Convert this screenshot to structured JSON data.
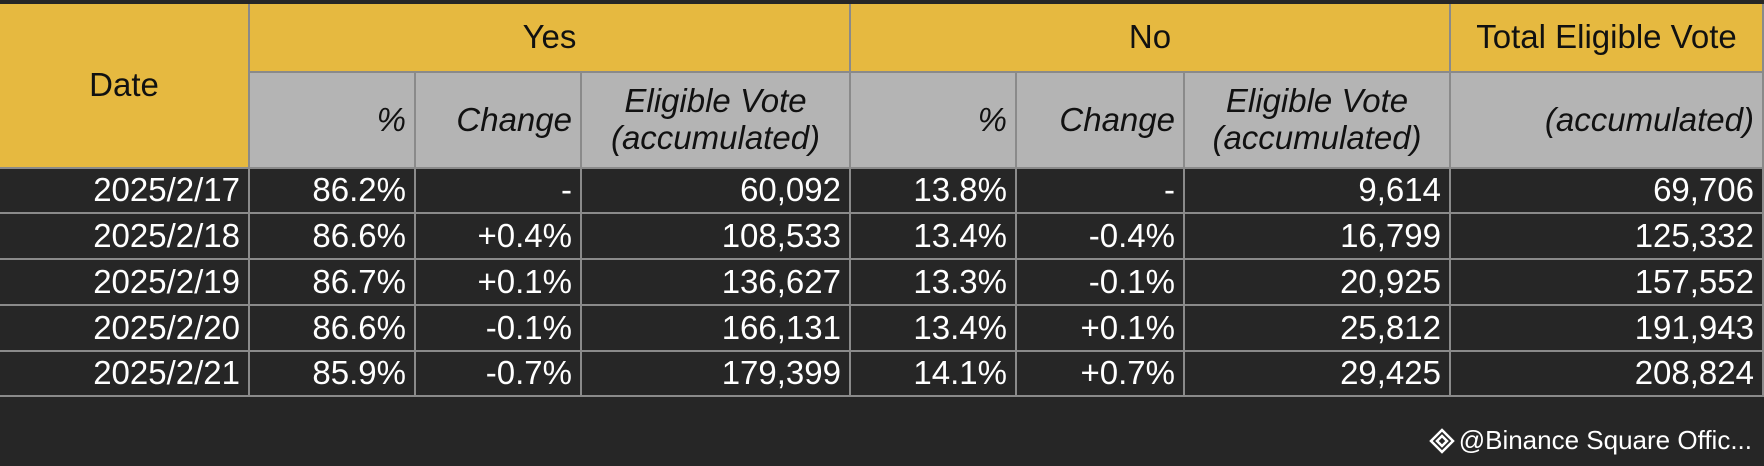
{
  "table": {
    "group_headers": [
      "Date",
      "Yes",
      "No",
      "Total Eligible Vote"
    ],
    "sub_headers": [
      "%",
      "Change",
      "Eligible Vote (accumulated)",
      "%",
      "Change",
      "Eligible Vote (accumulated)",
      "(accumulated)"
    ],
    "rows": [
      [
        "2025/2/17",
        "86.2%",
        "-",
        "60,092",
        "13.8%",
        "-",
        "9,614",
        "69,706"
      ],
      [
        "2025/2/18",
        "86.6%",
        "+0.4%",
        "108,533",
        "13.4%",
        "-0.4%",
        "16,799",
        "125,332"
      ],
      [
        "2025/2/19",
        "86.7%",
        "+0.1%",
        "136,627",
        "13.3%",
        "-0.1%",
        "20,925",
        "157,552"
      ],
      [
        "2025/2/20",
        "86.6%",
        "-0.1%",
        "166,131",
        "13.4%",
        "+0.1%",
        "25,812",
        "191,943"
      ],
      [
        "2025/2/21",
        "85.9%",
        "-0.7%",
        "179,399",
        "14.1%",
        "+0.7%",
        "29,425",
        "208,824"
      ]
    ]
  },
  "footer": {
    "watermark": "@Binance Square Offic..."
  }
}
